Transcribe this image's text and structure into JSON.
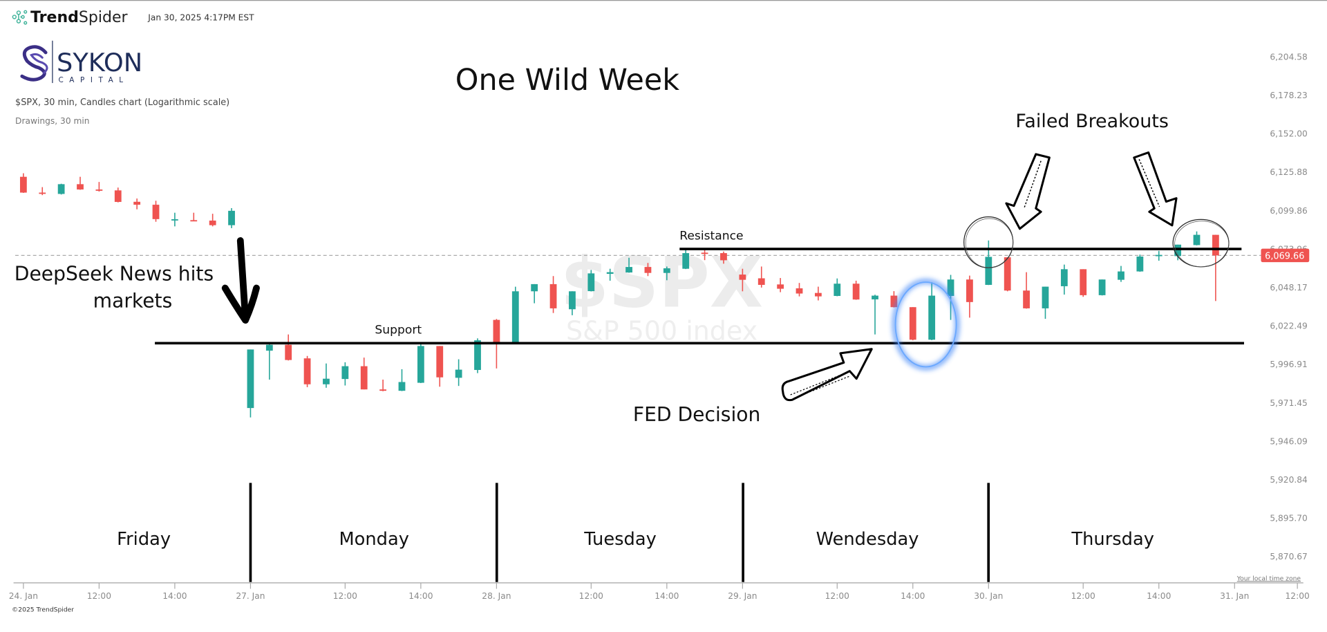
{
  "header": {
    "brand_bold": "Trend",
    "brand_light": "Spider",
    "timestamp": "Jan 30, 2025 4:17PM EST",
    "logo_main": "SYKON",
    "logo_sub": "CAPITAL",
    "chart_info": "$SPX, 30 min, Candles chart (Logarithmic scale)",
    "drawings_info": "Drawings, 30 min"
  },
  "footer": {
    "copyright": "©2025 TrendSpider",
    "timezone_link": "Your local time zone"
  },
  "watermark": {
    "symbol": "$SPX",
    "name": "S&P 500 index"
  },
  "annotations": {
    "title": "One Wild Week",
    "deepseek_line1": "DeepSeek News hits",
    "deepseek_line2": "markets",
    "support": "Support",
    "resistance": "Resistance",
    "fed": "FED Decision",
    "failed": "Failed Breakouts",
    "days": [
      "Friday",
      "Monday",
      "Tuesday",
      "Wendesday",
      "Thursday"
    ]
  },
  "colors": {
    "up": "#26a69a",
    "down": "#ef5350",
    "highlight": "#3b82f6",
    "logo": "#1e2d5a"
  },
  "chart_data": {
    "type": "candlestick",
    "symbol": "$SPX",
    "interval": "30 min",
    "scale": "logarithmic",
    "last_price": 6069.66,
    "last_price_label": "6,069.66",
    "support_level": 6011,
    "resistance_level": 6074,
    "ylim": [
      5870.67,
      6204.58
    ],
    "y_ticks": [
      {
        "v": 6204.58,
        "label": "6,204.58"
      },
      {
        "v": 6178.23,
        "label": "6,178.23"
      },
      {
        "v": 6152.0,
        "label": "6,152.00"
      },
      {
        "v": 6125.88,
        "label": "6,125.88"
      },
      {
        "v": 6099.86,
        "label": "6,099.86"
      },
      {
        "v": 6073.96,
        "label": "6,073.96"
      },
      {
        "v": 6048.17,
        "label": "6,048.17"
      },
      {
        "v": 6022.49,
        "label": "6,022.49"
      },
      {
        "v": 5996.91,
        "label": "5,996.91"
      },
      {
        "v": 5971.45,
        "label": "5,971.45"
      },
      {
        "v": 5946.09,
        "label": "5,946.09"
      },
      {
        "v": 5920.84,
        "label": "5,920.84"
      },
      {
        "v": 5895.7,
        "label": "5,895.70"
      },
      {
        "v": 5870.67,
        "label": "5,870.67"
      }
    ],
    "x_ticks": [
      {
        "label": "24. Jan",
        "day": 0,
        "time": "10:00"
      },
      {
        "label": "12:00",
        "day": 0,
        "time": "12:00"
      },
      {
        "label": "14:00",
        "day": 0,
        "time": "14:00"
      },
      {
        "label": "27. Jan",
        "day": 1,
        "time": "09:30"
      },
      {
        "label": "12:00",
        "day": 1,
        "time": "12:00"
      },
      {
        "label": "14:00",
        "day": 1,
        "time": "14:00"
      },
      {
        "label": "28. Jan",
        "day": 2,
        "time": "09:30"
      },
      {
        "label": "12:00",
        "day": 2,
        "time": "12:00"
      },
      {
        "label": "14:00",
        "day": 2,
        "time": "14:00"
      },
      {
        "label": "29. Jan",
        "day": 3,
        "time": "09:30"
      },
      {
        "label": "12:00",
        "day": 3,
        "time": "12:00"
      },
      {
        "label": "14:00",
        "day": 3,
        "time": "14:00"
      },
      {
        "label": "30. Jan",
        "day": 4,
        "time": "09:30"
      },
      {
        "label": "12:00",
        "day": 4,
        "time": "12:00"
      },
      {
        "label": "14:00",
        "day": 4,
        "time": "14:00"
      },
      {
        "label": "31. Jan",
        "day": 5,
        "time": "09:30"
      },
      {
        "label": "12:00",
        "day": 5,
        "time": "12:00"
      }
    ],
    "columns": [
      "time",
      "open",
      "high",
      "low",
      "close"
    ],
    "sessions": [
      {
        "date": "24 Jan",
        "bars": [
          [
            "10:00",
            6122.7,
            6125.1,
            6111.8,
            6112.0
          ],
          [
            "10:30",
            6112.0,
            6115.7,
            6110.3,
            6111.6
          ],
          [
            "11:00",
            6111.1,
            6118.0,
            6110.7,
            6117.7
          ],
          [
            "11:30",
            6117.7,
            6122.7,
            6113.9,
            6114.1
          ],
          [
            "12:00",
            6114.1,
            6119.2,
            6112.7,
            6113.5
          ],
          [
            "12:30",
            6113.5,
            6115.4,
            6105.4,
            6105.7
          ],
          [
            "13:00",
            6105.8,
            6108.0,
            6100.7,
            6103.8
          ],
          [
            "13:30",
            6103.8,
            6106.5,
            6092.3,
            6094.1
          ],
          [
            "14:00",
            6093.7,
            6098.4,
            6089.2,
            6094.0
          ],
          [
            "14:30",
            6093.4,
            6098.4,
            6092.7,
            6092.9
          ],
          [
            "15:00",
            6093.1,
            6097.7,
            6089.2,
            6090.0
          ],
          [
            "15:30",
            6090.0,
            6101.5,
            6088.0,
            6099.7
          ]
        ]
      },
      {
        "date": "27 Jan",
        "bars": [
          [
            "09:30",
            5968.0,
            6006.8,
            5961.8,
            6006.8
          ],
          [
            "10:00",
            6006.0,
            6010.6,
            5986.8,
            6009.9
          ],
          [
            "10:30",
            6009.9,
            6016.8,
            5999.5,
            5999.8
          ],
          [
            "11:00",
            6000.9,
            6002.5,
            5981.8,
            5983.7
          ],
          [
            "11:30",
            5983.7,
            5997.5,
            5981.4,
            5987.4
          ],
          [
            "12:00",
            5987.2,
            5998.3,
            5982.9,
            5995.7
          ],
          [
            "12:30",
            5995.7,
            6001.4,
            5980.3,
            5980.3
          ],
          [
            "13:00",
            5980.3,
            5986.8,
            5979.1,
            5979.4
          ],
          [
            "13:30",
            5979.4,
            5993.7,
            5979.2,
            5985.2
          ],
          [
            "14:00",
            5984.7,
            6010.6,
            5984.5,
            6009.1
          ],
          [
            "14:30",
            6009.1,
            6009.1,
            5982.1,
            5988.3
          ],
          [
            "15:00",
            5988.0,
            6000.3,
            5982.6,
            5993.4
          ],
          [
            "15:30",
            5993.2,
            6014.2,
            5991.1,
            6012.9
          ]
        ]
      },
      {
        "date": "28 Jan",
        "bars": [
          [
            "09:30",
            6026.5,
            6027.1,
            5994.2,
            6010.6
          ],
          [
            "10:00",
            6011.4,
            6048.7,
            6010.6,
            6045.6
          ],
          [
            "10:30",
            6045.6,
            6050.4,
            6037.6,
            6050.4
          ],
          [
            "11:00",
            6050.4,
            6055.8,
            6031.1,
            6034.2
          ],
          [
            "11:30",
            6033.6,
            6045.6,
            6029.6,
            6045.6
          ],
          [
            "12:00",
            6045.7,
            6059.9,
            6045.5,
            6057.6
          ],
          [
            "12:30",
            6057.3,
            6060.7,
            6052.7,
            6058.4
          ],
          [
            "13:00",
            6058.2,
            6068.1,
            6058.0,
            6061.9
          ],
          [
            "13:30",
            6061.9,
            6064.6,
            6055.8,
            6057.9
          ],
          [
            "14:00",
            6057.9,
            6062.2,
            6053.0,
            6061.0
          ],
          [
            "14:30",
            6060.7,
            6073.8,
            6060.5,
            6071.2
          ],
          [
            "15:00",
            6071.5,
            6073.8,
            6066.5,
            6070.9
          ],
          [
            "15:30",
            6071.2,
            6072.3,
            6064.1,
            6066.4
          ]
        ]
      },
      {
        "date": "29 Jan",
        "bars": [
          [
            "09:30",
            6056.8,
            6060.7,
            6045.6,
            6053.3
          ],
          [
            "10:00",
            6054.3,
            6062.2,
            6048.1,
            6049.9
          ],
          [
            "10:30",
            6050.2,
            6054.5,
            6045.0,
            6047.3
          ],
          [
            "11:00",
            6047.6,
            6051.2,
            6042.2,
            6044.1
          ],
          [
            "11:30",
            6044.5,
            6048.7,
            6039.5,
            6042.2
          ],
          [
            "12:00",
            6042.5,
            6054.2,
            6042.3,
            6050.7
          ],
          [
            "12:30",
            6050.7,
            6052.7,
            6039.9,
            6040.1
          ],
          [
            "13:00",
            6040.2,
            6043.3,
            6016.8,
            6042.7
          ],
          [
            "13:30",
            6042.7,
            6045.7,
            6034.8,
            6035.0
          ],
          [
            "14:00",
            6035.0,
            6035.0,
            6012.9,
            6013.3
          ],
          [
            "14:30",
            6013.3,
            6051.7,
            6013.0,
            6042.7
          ],
          [
            "15:00",
            6042.5,
            6056.6,
            6026.5,
            6053.5
          ],
          [
            "15:30",
            6053.5,
            6056.1,
            6028.0,
            6038.4
          ]
        ]
      },
      {
        "date": "30 Jan",
        "bars": [
          [
            "09:30",
            6049.9,
            6079.7,
            6049.8,
            6068.7
          ],
          [
            "10:00",
            6068.4,
            6068.4,
            6045.6,
            6046.1
          ],
          [
            "10:30",
            6046.1,
            6058.4,
            6034.0,
            6034.2
          ],
          [
            "11:00",
            6034.2,
            6048.7,
            6027.2,
            6048.7
          ],
          [
            "11:30",
            6049.0,
            6063.5,
            6043.4,
            6060.4
          ],
          [
            "12:00",
            6060.4,
            6060.4,
            6041.9,
            6043.0
          ],
          [
            "12:30",
            6043.0,
            6053.5,
            6042.8,
            6053.5
          ],
          [
            "13:00",
            6053.3,
            6062.6,
            6051.9,
            6058.9
          ],
          [
            "13:30",
            6058.9,
            6070.2,
            6058.7,
            6068.9
          ],
          [
            "14:00",
            6069.2,
            6072.7,
            6066.1,
            6070.0
          ],
          [
            "14:30",
            6069.2,
            6076.9,
            6066.4,
            6076.9
          ],
          [
            "15:00",
            6076.6,
            6085.8,
            6076.4,
            6083.5
          ],
          [
            "15:30",
            6083.5,
            6083.5,
            6039.1,
            6069.66
          ]
        ]
      }
    ]
  }
}
